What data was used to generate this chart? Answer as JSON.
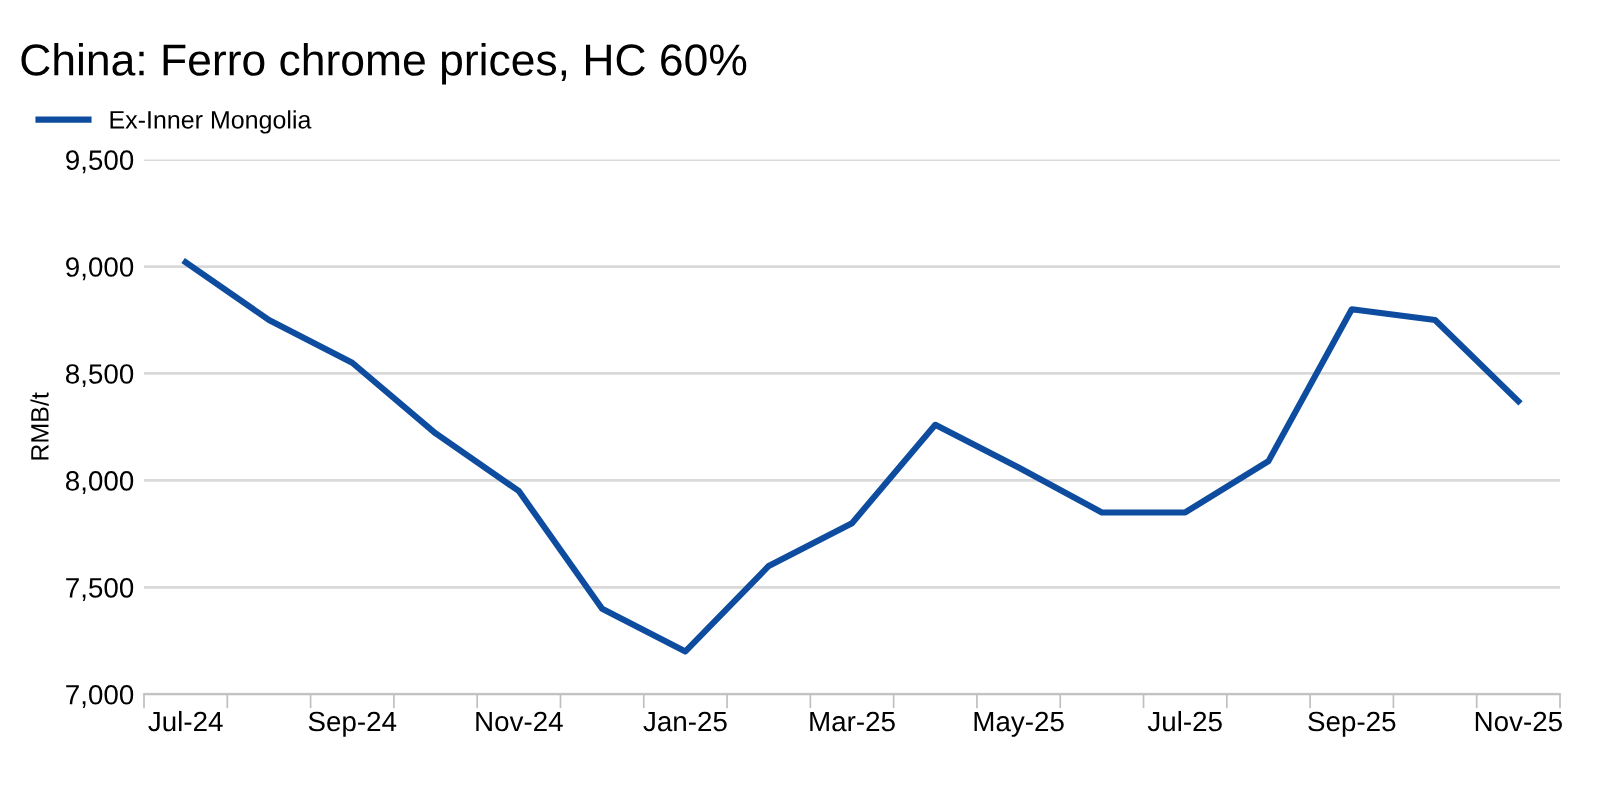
{
  "chart_data": {
    "type": "line",
    "title": "China: Ferro chrome prices, HC 60%",
    "ylabel": "RMB/t",
    "categories": [
      "Jul-24",
      null,
      "Sep-24",
      null,
      "Nov-24",
      null,
      "Jan-25",
      null,
      "Mar-25",
      null,
      "May-25",
      null,
      "Jul-25",
      null,
      "Sep-25",
      null,
      "Nov-25"
    ],
    "series": [
      {
        "name": "Ex-Inner Mongolia",
        "color": "#0d4c9e",
        "values": [
          9020,
          8750,
          8550,
          8220,
          7950,
          7400,
          7200,
          7600,
          7800,
          8260,
          8060,
          7850,
          7850,
          8090,
          8800,
          8750,
          8370
        ]
      }
    ],
    "ylim": [
      7000,
      9500
    ],
    "yticks": [
      {
        "value": 7000,
        "label": "7,000"
      },
      {
        "value": 7500,
        "label": "7,500"
      },
      {
        "value": 8000,
        "label": "8,000"
      },
      {
        "value": 8500,
        "label": "8,500"
      },
      {
        "value": 9000,
        "label": "9,000"
      },
      {
        "value": 9500,
        "label": "9,500"
      }
    ],
    "grid": "y",
    "legend": "top left",
    "marker": "none",
    "line_style": "solid"
  }
}
